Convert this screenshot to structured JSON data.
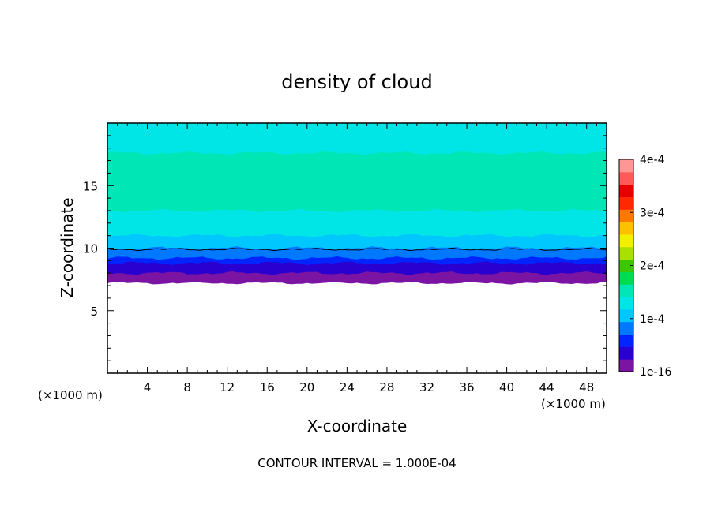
{
  "chart_data": {
    "type": "heatmap",
    "title": "density of cloud",
    "xlabel": "X-coordinate",
    "ylabel": "Z-coordinate",
    "x_unit_left": "(×1000 m)",
    "x_unit_right": "(×1000 m)",
    "xlim": [
      0,
      50
    ],
    "ylim": [
      0,
      20
    ],
    "x_ticks": [
      4,
      8,
      12,
      16,
      20,
      24,
      28,
      32,
      36,
      40,
      44,
      48
    ],
    "y_ticks": [
      5,
      10,
      15
    ],
    "footnote": "CONTOUR INTERVAL = 1.000E-04",
    "colorbar": {
      "min": 0,
      "max": 0.0004,
      "tick_labels": [
        "1e-16",
        "1e-4",
        "2e-4",
        "3e-4",
        "4e-4"
      ],
      "tick_values": [
        0,
        0.0001,
        0.0002,
        0.0003,
        0.0004
      ],
      "colors": [
        "#7b14a3",
        "#2a00d0",
        "#0024ff",
        "#0078ff",
        "#00c8ff",
        "#00e6e6",
        "#00e6b4",
        "#00dc50",
        "#3cc800",
        "#aae000",
        "#f0f000",
        "#ffc000",
        "#ff7800",
        "#ff2800",
        "#e60000",
        "#ff5a5a",
        "#ff9696"
      ]
    },
    "cloud_base_km": 7.2,
    "cloud_top_km": 20,
    "contour_line_km": 9.9,
    "bands": [
      {
        "z": 7.2,
        "value": 5e-06
      },
      {
        "z": 7.6,
        "value": 1.5e-05
      },
      {
        "z": 8.0,
        "value": 3e-05
      },
      {
        "z": 8.4,
        "value": 4.5e-05
      },
      {
        "z": 8.8,
        "value": 6e-05
      },
      {
        "z": 9.2,
        "value": 7.5e-05
      },
      {
        "z": 9.6,
        "value": 9e-05
      },
      {
        "z": 10.0,
        "value": 0.0001
      },
      {
        "z": 10.5,
        "value": 0.00011
      },
      {
        "z": 11.0,
        "value": 0.00012
      },
      {
        "z": 11.5,
        "value": 0.00013
      },
      {
        "z": 12.2,
        "value": 0.00014
      },
      {
        "z": 13.0,
        "value": 0.000148
      },
      {
        "z": 14.0,
        "value": 0.000155
      },
      {
        "z": 16.6,
        "value": 0.000148
      },
      {
        "z": 17.6,
        "value": 0.000135
      },
      {
        "z": 18.6,
        "value": 0.000125
      },
      {
        "z": 19.4,
        "value": 0.000118
      }
    ]
  }
}
